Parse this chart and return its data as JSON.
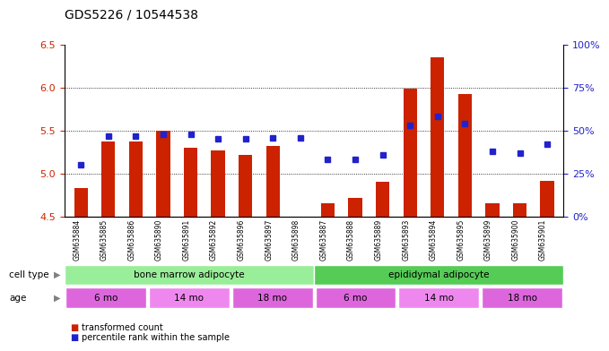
{
  "title": "GDS5226 / 10544538",
  "samples": [
    "GSM635884",
    "GSM635885",
    "GSM635886",
    "GSM635890",
    "GSM635891",
    "GSM635892",
    "GSM635896",
    "GSM635897",
    "GSM635898",
    "GSM635887",
    "GSM635888",
    "GSM635889",
    "GSM635893",
    "GSM635894",
    "GSM635895",
    "GSM635899",
    "GSM635900",
    "GSM635901"
  ],
  "bar_values": [
    4.83,
    5.37,
    5.37,
    5.5,
    5.3,
    5.27,
    5.22,
    5.32,
    4.5,
    4.65,
    4.72,
    4.9,
    5.99,
    6.35,
    5.93,
    4.65,
    4.65,
    4.92
  ],
  "bar_base": 4.5,
  "percentile_values": [
    30,
    47,
    47,
    48,
    48,
    45,
    45,
    46,
    46,
    33,
    33,
    36,
    53,
    58,
    54,
    38,
    37,
    42
  ],
  "percentile_scale_max": 100,
  "ylim_left": [
    4.5,
    6.5
  ],
  "yticks_left": [
    4.5,
    5.0,
    5.5,
    6.0,
    6.5
  ],
  "yticks_right": [
    0,
    25,
    50,
    75,
    100
  ],
  "ytick_labels_right": [
    "0%",
    "25%",
    "50%",
    "75%",
    "100%"
  ],
  "bar_color": "#cc2200",
  "percentile_color": "#2222cc",
  "cell_type_groups": [
    {
      "label": "bone marrow adipocyte",
      "start": 0,
      "end": 9,
      "color": "#99ee99"
    },
    {
      "label": "epididymal adipocyte",
      "start": 9,
      "end": 18,
      "color": "#55cc55"
    }
  ],
  "age_groups": [
    {
      "label": "6 mo",
      "start": 0,
      "end": 3,
      "color": "#dd66dd"
    },
    {
      "label": "14 mo",
      "start": 3,
      "end": 6,
      "color": "#ee88ee"
    },
    {
      "label": "18 mo",
      "start": 6,
      "end": 9,
      "color": "#dd66dd"
    },
    {
      "label": "6 mo",
      "start": 9,
      "end": 12,
      "color": "#dd66dd"
    },
    {
      "label": "14 mo",
      "start": 12,
      "end": 15,
      "color": "#ee88ee"
    },
    {
      "label": "18 mo",
      "start": 15,
      "end": 18,
      "color": "#dd66dd"
    }
  ],
  "cell_type_label": "cell type",
  "age_label": "age",
  "legend_bar_label": "transformed count",
  "legend_pct_label": "percentile rank within the sample",
  "bar_tick_color": "#cc2200",
  "ylabel_right_color": "#2222cc"
}
